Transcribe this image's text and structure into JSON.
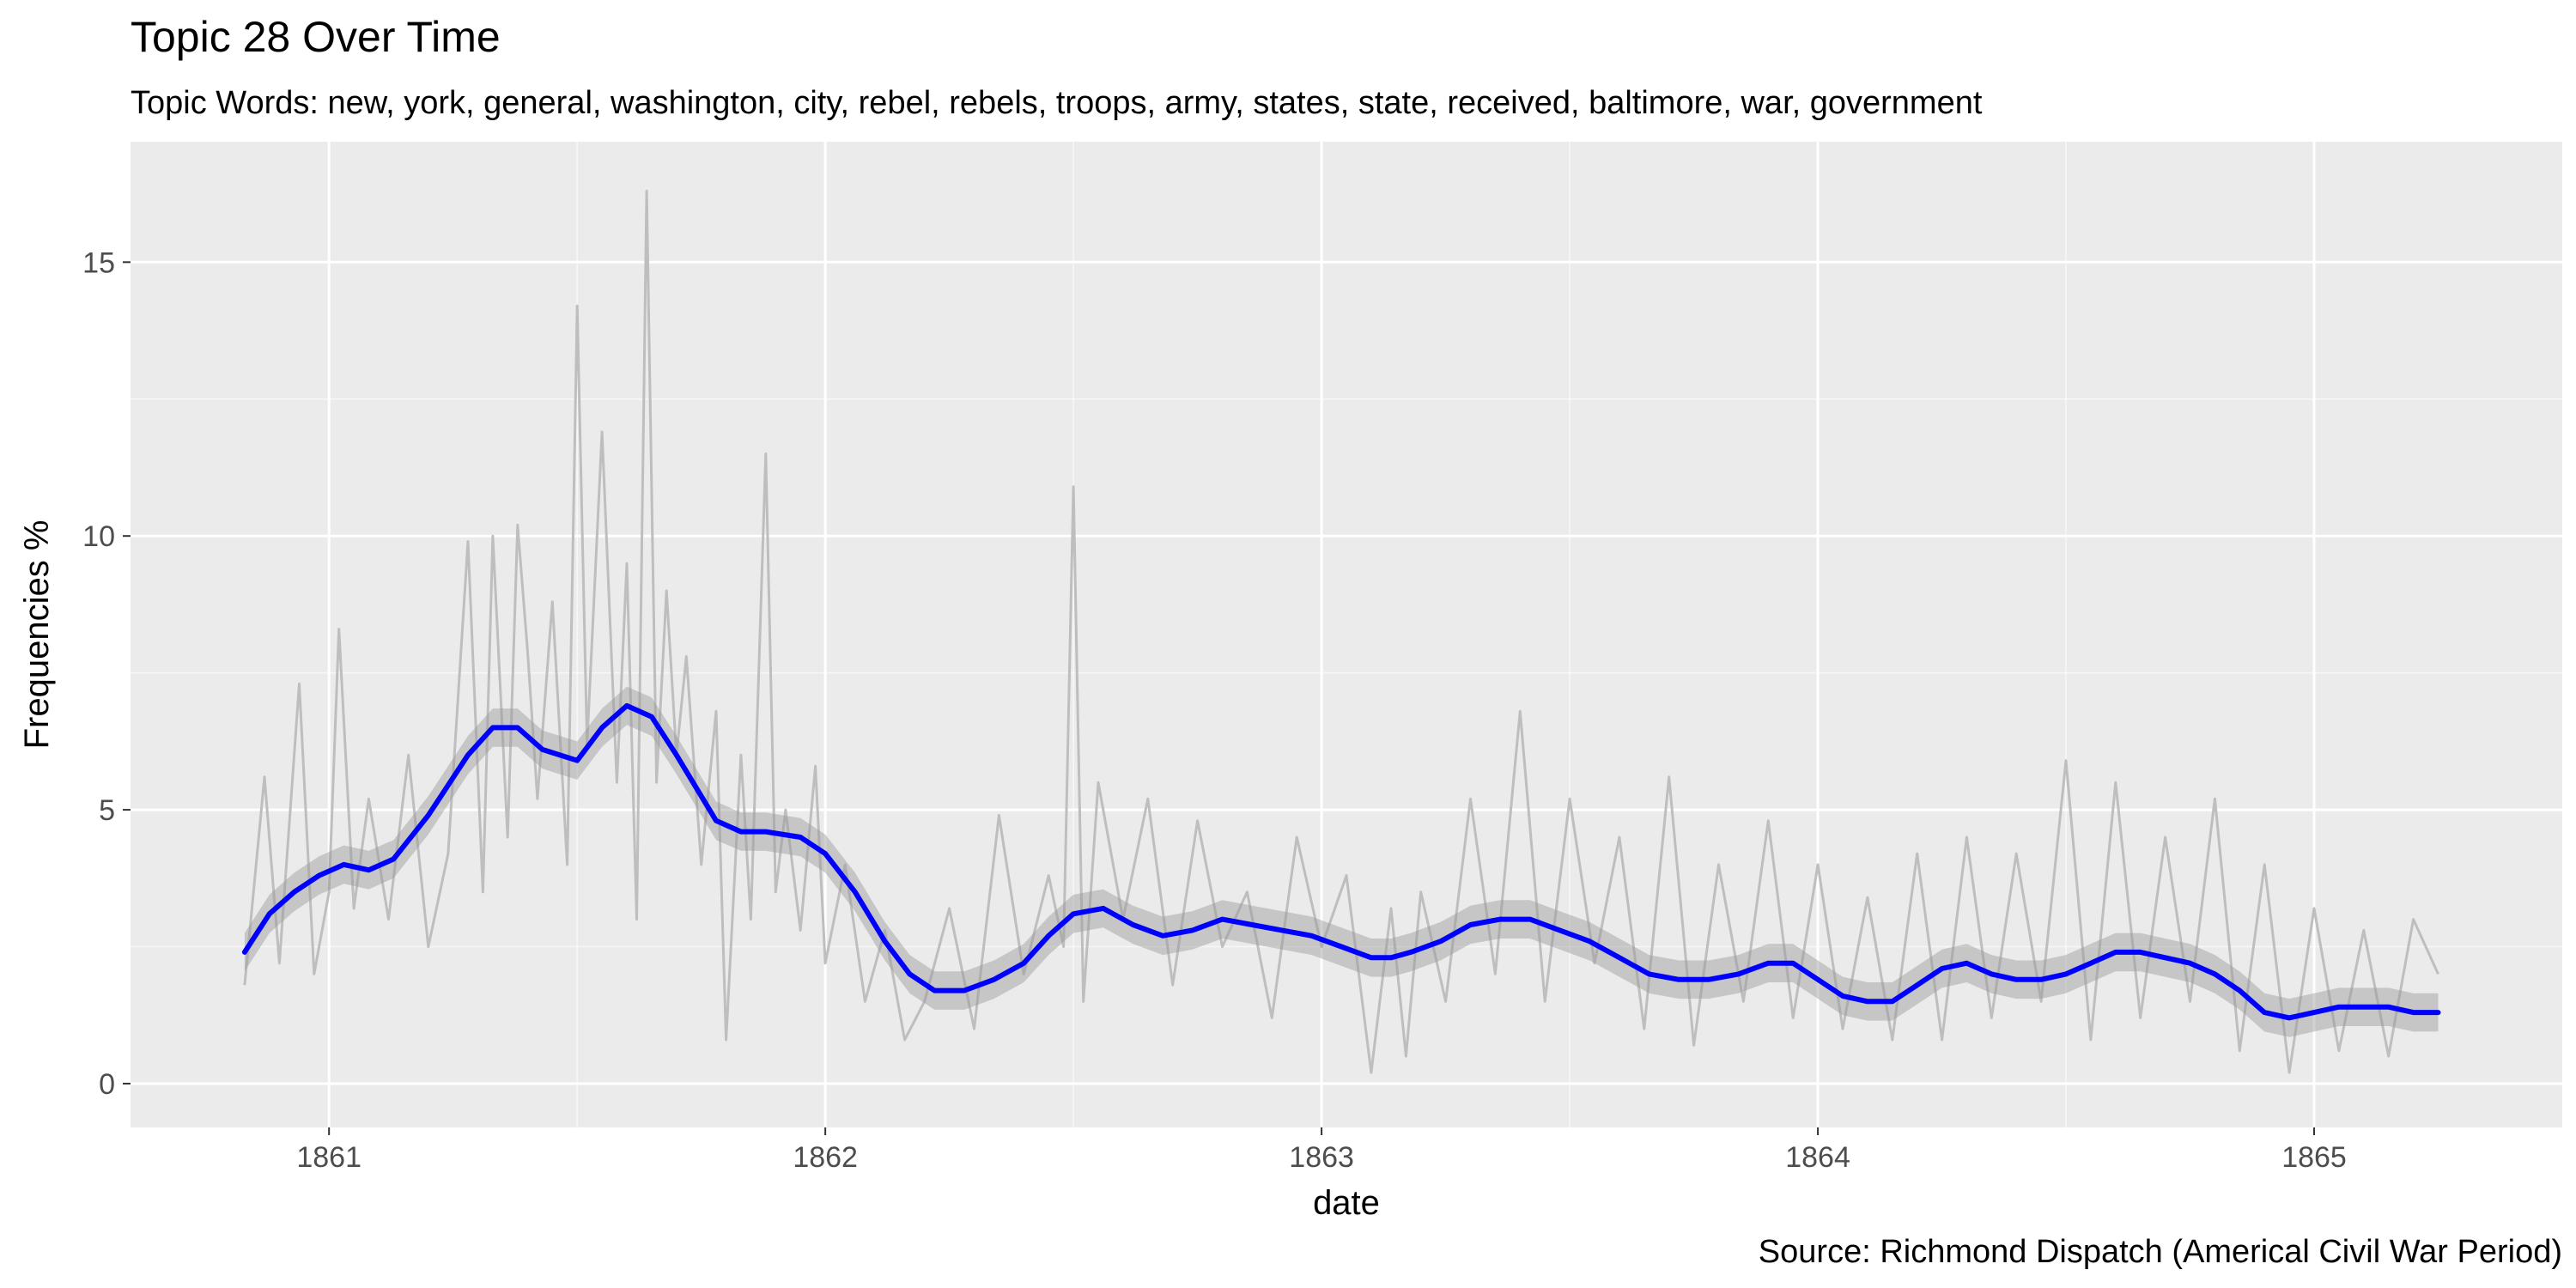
{
  "chart_data": {
    "type": "line",
    "title": "Topic 28 Over Time",
    "subtitle": "Topic Words: new, york, general, washington, city, rebel, rebels, troops, army, states, state, received, baltimore, war, government",
    "xlabel": "date",
    "ylabel": "Frequencies %",
    "caption": "Source: Richmond Dispatch (Americal Civil War Period)",
    "xlim": [
      1860.6,
      1865.5
    ],
    "ylim": [
      -0.8,
      17.2
    ],
    "x_ticks": [
      1861,
      1862,
      1863,
      1864,
      1865
    ],
    "x_tick_labels": [
      "1861",
      "1862",
      "1863",
      "1864",
      "1865"
    ],
    "y_ticks": [
      0,
      5,
      10,
      15
    ],
    "y_tick_labels": [
      "0",
      "5",
      "10",
      "15"
    ],
    "grid": true,
    "legend": "none",
    "colors": {
      "panel_background": "#EBEBEB",
      "grid_major": "#FFFFFF",
      "raw_series": "#BEBEBE",
      "smooth_line": "#0000FF",
      "confidence_band": "#999999"
    },
    "series": [
      {
        "style": "raw",
        "x": [
          1860.83,
          1860.87,
          1860.9,
          1860.94,
          1860.97,
          1861.0,
          1861.02,
          1861.05,
          1861.08,
          1861.12,
          1861.16,
          1861.2,
          1861.24,
          1861.28,
          1861.31,
          1861.33,
          1861.36,
          1861.38,
          1861.4,
          1861.42,
          1861.45,
          1861.48,
          1861.5,
          1861.52,
          1861.55,
          1861.58,
          1861.6,
          1861.62,
          1861.64,
          1861.66,
          1861.68,
          1861.7,
          1861.72,
          1861.75,
          1861.78,
          1861.8,
          1861.83,
          1861.85,
          1861.88,
          1861.9,
          1861.92,
          1861.95,
          1861.98,
          1862.0,
          1862.04,
          1862.08,
          1862.12,
          1862.16,
          1862.2,
          1862.25,
          1862.3,
          1862.35,
          1862.4,
          1862.45,
          1862.48,
          1862.5,
          1862.52,
          1862.55,
          1862.6,
          1862.65,
          1862.7,
          1862.75,
          1862.8,
          1862.85,
          1862.9,
          1862.95,
          1863.0,
          1863.05,
          1863.1,
          1863.14,
          1863.17,
          1863.2,
          1863.25,
          1863.3,
          1863.35,
          1863.4,
          1863.45,
          1863.5,
          1863.55,
          1863.6,
          1863.65,
          1863.7,
          1863.75,
          1863.8,
          1863.85,
          1863.9,
          1863.95,
          1864.0,
          1864.05,
          1864.1,
          1864.15,
          1864.2,
          1864.25,
          1864.3,
          1864.35,
          1864.4,
          1864.45,
          1864.5,
          1864.55,
          1864.6,
          1864.65,
          1864.7,
          1864.75,
          1864.8,
          1864.85,
          1864.9,
          1864.95,
          1865.0,
          1865.05,
          1865.1,
          1865.15,
          1865.2,
          1865.25
        ],
        "y": [
          1.8,
          5.6,
          2.2,
          7.3,
          2.0,
          3.5,
          8.3,
          3.2,
          5.2,
          3.0,
          6.0,
          2.5,
          4.2,
          9.9,
          3.5,
          10.0,
          4.5,
          10.2,
          7.9,
          5.2,
          8.8,
          4.0,
          14.2,
          6.2,
          11.9,
          5.5,
          9.5,
          3.0,
          16.3,
          5.5,
          9.0,
          6.0,
          7.8,
          4.0,
          6.8,
          0.8,
          6.0,
          3.0,
          11.5,
          3.5,
          5.0,
          2.8,
          5.8,
          2.2,
          4.0,
          1.5,
          2.8,
          0.8,
          1.5,
          3.2,
          1.0,
          4.9,
          2.0,
          3.8,
          2.5,
          10.9,
          1.5,
          5.5,
          3.0,
          5.2,
          1.8,
          4.8,
          2.5,
          3.5,
          1.2,
          4.5,
          2.5,
          3.8,
          0.2,
          3.2,
          0.5,
          3.5,
          1.5,
          5.2,
          2.0,
          6.8,
          1.5,
          5.2,
          2.2,
          4.5,
          1.0,
          5.6,
          0.7,
          4.0,
          1.5,
          4.8,
          1.2,
          4.0,
          1.0,
          3.4,
          0.8,
          4.2,
          0.8,
          4.5,
          1.2,
          4.2,
          1.5,
          5.9,
          0.8,
          5.5,
          1.2,
          4.5,
          1.5,
          5.2,
          0.6,
          4.0,
          0.2,
          3.2,
          0.6,
          2.8,
          0.5,
          3.0,
          2.0
        ]
      },
      {
        "style": "smooth",
        "x": [
          1860.83,
          1860.88,
          1860.93,
          1860.98,
          1861.03,
          1861.08,
          1861.13,
          1861.2,
          1861.28,
          1861.33,
          1861.38,
          1861.43,
          1861.5,
          1861.55,
          1861.6,
          1861.65,
          1861.7,
          1861.78,
          1861.83,
          1861.88,
          1861.95,
          1862.0,
          1862.06,
          1862.12,
          1862.17,
          1862.22,
          1862.28,
          1862.34,
          1862.4,
          1862.45,
          1862.5,
          1862.56,
          1862.62,
          1862.68,
          1862.74,
          1862.8,
          1862.86,
          1862.92,
          1862.98,
          1863.04,
          1863.1,
          1863.14,
          1863.18,
          1863.24,
          1863.3,
          1863.36,
          1863.42,
          1863.48,
          1863.54,
          1863.6,
          1863.66,
          1863.72,
          1863.78,
          1863.84,
          1863.9,
          1863.95,
          1864.0,
          1864.05,
          1864.1,
          1864.15,
          1864.2,
          1864.25,
          1864.3,
          1864.35,
          1864.4,
          1864.45,
          1864.5,
          1864.55,
          1864.6,
          1864.65,
          1864.7,
          1864.75,
          1864.8,
          1864.85,
          1864.9,
          1864.95,
          1865.0,
          1865.05,
          1865.1,
          1865.15,
          1865.2,
          1865.25
        ],
        "y": [
          2.4,
          3.1,
          3.5,
          3.8,
          4.0,
          3.9,
          4.1,
          4.9,
          6.0,
          6.5,
          6.5,
          6.1,
          5.9,
          6.5,
          6.9,
          6.7,
          6.0,
          4.8,
          4.6,
          4.6,
          4.5,
          4.2,
          3.5,
          2.6,
          2.0,
          1.7,
          1.7,
          1.9,
          2.2,
          2.7,
          3.1,
          3.2,
          2.9,
          2.7,
          2.8,
          3.0,
          2.9,
          2.8,
          2.7,
          2.5,
          2.3,
          2.3,
          2.4,
          2.6,
          2.9,
          3.0,
          3.0,
          2.8,
          2.6,
          2.3,
          2.0,
          1.9,
          1.9,
          2.0,
          2.2,
          2.2,
          1.9,
          1.6,
          1.5,
          1.5,
          1.8,
          2.1,
          2.2,
          2.0,
          1.9,
          1.9,
          2.0,
          2.2,
          2.4,
          2.4,
          2.3,
          2.2,
          2.0,
          1.7,
          1.3,
          1.2,
          1.3,
          1.4,
          1.4,
          1.4,
          1.3,
          1.3
        ],
        "band_halfwidth": 0.35
      }
    ]
  }
}
